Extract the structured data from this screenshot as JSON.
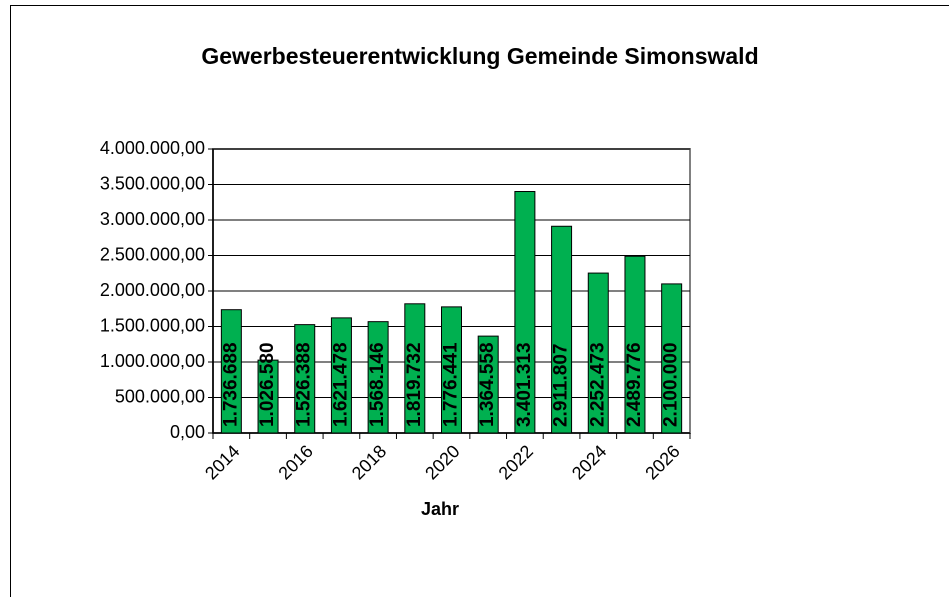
{
  "chart_data": {
    "type": "bar",
    "title": "Gewerbesteuerentwicklung  Gemeinde  Simonswald",
    "x_label": "Jahr",
    "categories": [
      "2014",
      null,
      "2016",
      null,
      "2018",
      null,
      "2020",
      null,
      "2022",
      null,
      "2024",
      null,
      "2026"
    ],
    "values": [
      1736688,
      1026580,
      1526388,
      1621478,
      1568146,
      1819732,
      1776441,
      1364558,
      3401313,
      2911807,
      2252473,
      2489776,
      2100000
    ],
    "value_labels": [
      "1.736.688",
      "1.026.580",
      "1.526.388",
      "1.621.478",
      "1.568.146",
      "1.819.732",
      "1.776.441",
      "1.364.558",
      "3.401.313",
      "2.911.807",
      "2.252.473",
      "2.489.776",
      "2.100.000"
    ],
    "color": "#00b050",
    "ylim": [
      0,
      4000000
    ],
    "yticks": [
      {
        "value": 0,
        "label": "0,00"
      },
      {
        "value": 500000,
        "label": "500.000,00"
      },
      {
        "value": 1000000,
        "label": "1.000.000,00"
      },
      {
        "value": 1500000,
        "label": "1.500.000,00"
      },
      {
        "value": 2000000,
        "label": "2.000.000,00"
      },
      {
        "value": 2500000,
        "label": "2.500.000,00"
      },
      {
        "value": 3000000,
        "label": "3.000.000,00"
      },
      {
        "value": 3500000,
        "label": "3.500.000,00"
      },
      {
        "value": 4000000,
        "label": "4.000.000,00"
      }
    ],
    "grid": true
  }
}
